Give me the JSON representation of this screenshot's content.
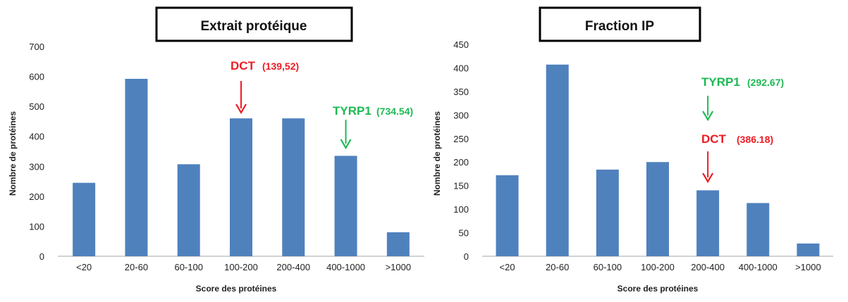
{
  "chart_data": [
    {
      "type": "bar",
      "title": "Extrait protéique",
      "xlabel": "Score des protéines",
      "ylabel": "Nombre de protéines",
      "categories": [
        "<20",
        "20-60",
        "60-100",
        "100-200",
        "200-400",
        "400-1000",
        ">1000"
      ],
      "values": [
        245,
        592,
        307,
        460,
        460,
        335,
        80
      ],
      "ylim": [
        0,
        700
      ],
      "yticks": [
        0,
        100,
        200,
        300,
        400,
        500,
        600,
        700
      ],
      "bar_color": "#4f81bd",
      "grid": false,
      "annotations": [
        {
          "name": "DCT",
          "value": "(139,52)",
          "category": "100-200",
          "color": "#ee1c24"
        },
        {
          "name": "TYRP1",
          "value": "(734.54)",
          "category": "400-1000",
          "color": "#1db954"
        }
      ]
    },
    {
      "type": "bar",
      "title": "Fraction IP",
      "xlabel": "Score des protéines",
      "ylabel": "Nombre de protéines",
      "categories": [
        "<20",
        "20-60",
        "60-100",
        "100-200",
        "200-400",
        "400-1000",
        ">1000"
      ],
      "values": [
        172,
        407,
        184,
        200,
        140,
        113,
        27
      ],
      "ylim": [
        0,
        450
      ],
      "yticks": [
        0,
        50,
        100,
        150,
        200,
        250,
        300,
        350,
        400,
        450
      ],
      "bar_color": "#4f81bd",
      "grid": false,
      "annotations": [
        {
          "name": "TYRP1",
          "value": "(292.67)",
          "category": "200-400",
          "color": "#1db954"
        },
        {
          "name": "DCT",
          "value": "(386.18)",
          "category": "200-400",
          "color": "#ee1c24"
        }
      ]
    }
  ]
}
